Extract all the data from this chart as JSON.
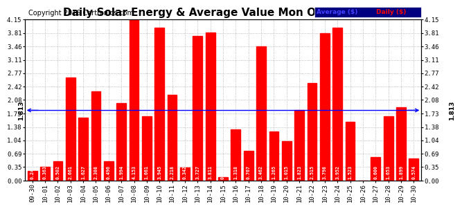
{
  "title": "Daily Solar Energy & Average Value Mon Oct 31 17:40",
  "copyright": "Copyright 2016 Cartronics.com",
  "categories": [
    "09-30",
    "10-01",
    "10-02",
    "10-03",
    "10-04",
    "10-05",
    "10-06",
    "10-07",
    "10-08",
    "10-09",
    "10-10",
    "10-11",
    "10-12",
    "10-13",
    "10-14",
    "10-15",
    "10-16",
    "10-17",
    "10-18",
    "10-19",
    "10-20",
    "10-21",
    "10-22",
    "10-23",
    "10-24",
    "10-25",
    "10-26",
    "10-27",
    "10-28",
    "10-29",
    "10-30"
  ],
  "values": [
    0.243,
    0.363,
    0.502,
    2.661,
    1.627,
    2.308,
    0.496,
    1.994,
    4.153,
    1.661,
    3.945,
    2.218,
    0.342,
    3.727,
    3.811,
    0.085,
    1.318,
    0.767,
    3.462,
    1.265,
    1.015,
    1.823,
    2.515,
    3.798,
    3.952,
    1.523,
    0.0,
    0.6,
    1.653,
    1.899,
    0.574
  ],
  "average": 1.813,
  "bar_color": "#ff0000",
  "average_line_color": "#0000ff",
  "background_color": "#ffffff",
  "plot_bg_color": "#ffffff",
  "grid_color": "#aaaaaa",
  "ylim": [
    0,
    4.15
  ],
  "yticks": [
    0.0,
    0.35,
    0.69,
    1.04,
    1.38,
    1.73,
    2.08,
    2.42,
    2.77,
    3.11,
    3.46,
    3.81,
    4.15
  ],
  "title_fontsize": 11,
  "copyright_fontsize": 7,
  "legend_avg_color": "#4444ff",
  "legend_daily_color": "#ff0000",
  "legend_bg_color": "#000080",
  "bar_width": 0.75
}
